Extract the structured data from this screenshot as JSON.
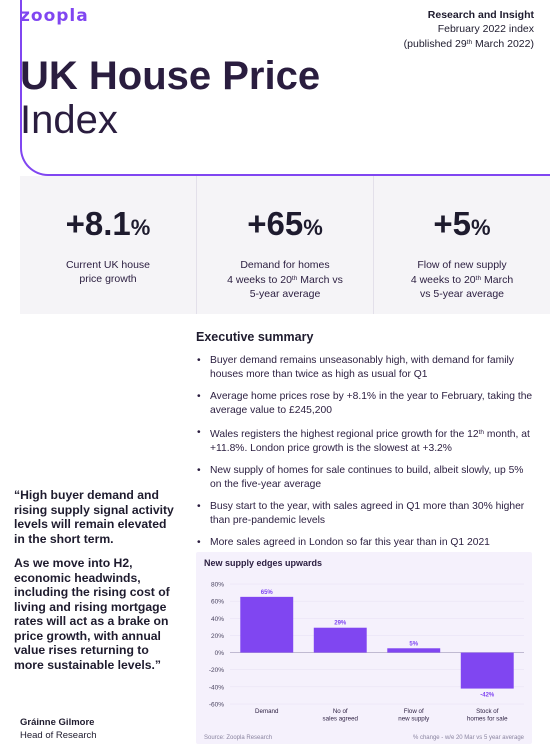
{
  "brand": {
    "logo": "zoopla",
    "accent": "#8046f1"
  },
  "publication": {
    "line1": "Research and Insight",
    "line2": "February 2022 index",
    "line3_pre": "(published 29",
    "line3_sup": "th",
    "line3_post": " March 2022)"
  },
  "hero": {
    "title": "UK House Price",
    "subtitle": "Index"
  },
  "stats": [
    {
      "value": "+8.1",
      "unit": "%",
      "label_l1": "Current UK house",
      "label_l2": "price growth",
      "label_l3": ""
    },
    {
      "value": "+65",
      "unit": "%",
      "label_l1": "Demand for homes",
      "label_l2_pre": "4 weeks to 20",
      "label_l2_sup": "th",
      "label_l2_post": " March vs",
      "label_l3": "5-year average"
    },
    {
      "value": "+5",
      "unit": "%",
      "label_l1": "Flow of new supply",
      "label_l2_pre": "4 weeks to 20",
      "label_l2_sup": "th",
      "label_l2_post": " March",
      "label_l3": "vs 5-year average"
    }
  ],
  "executive_summary": {
    "title": "Executive summary",
    "bullets": [
      "Buyer demand remains unseasonably high, with demand for family houses more than twice as high as usual for Q1",
      "Average home prices rose by +8.1% in the year to February, taking the average value to £245,200",
      "",
      "New supply of homes for sale continues to build, albeit slowly, up 5% on the five-year average",
      "Busy start to the year, with sales agreed in Q1 more than 30% higher than pre-pandemic levels",
      "More sales agreed in London so far this year than in Q1 2021"
    ],
    "wales_pre": "Wales registers the highest regional price growth for the 12",
    "wales_sup": "th",
    "wales_post": " month, at +11.8%. London price growth is the slowest at +3.2%"
  },
  "quote": {
    "p1": "“High buyer demand and rising supply signal activity levels will remain elevated in the short term.",
    "p2": "As we move into H2, economic headwinds, including the rising cost of living and rising mortgage rates will act as a brake on price growth, with annual value rises returning to more sustainable levels.”",
    "author_name": "Gráinne Gilmore",
    "author_role": "Head of Research"
  },
  "chart_data": {
    "type": "bar",
    "title": "New supply edges upwards",
    "categories": [
      "Demand",
      "No of sales agreed",
      "Flow of new supply",
      "Stock of homes for sale"
    ],
    "category_lines": [
      [
        "Demand"
      ],
      [
        "No of",
        "sales agreed"
      ],
      [
        "Flow of",
        "new supply"
      ],
      [
        "Stock of",
        "homes for sale"
      ]
    ],
    "values": [
      65,
      29,
      5,
      -42
    ],
    "data_labels": [
      "65%",
      "29%",
      "5%",
      "-42%"
    ],
    "ylim": [
      -60,
      80
    ],
    "yticks": [
      80,
      60,
      40,
      20,
      0,
      -20,
      -40,
      -60
    ],
    "ytick_labels": [
      "80%",
      "60%",
      "40%",
      "20%",
      "0%",
      "-20%",
      "-40%",
      "-60%"
    ],
    "bar_color": "#8046f1",
    "source": "Source: Zoopla Research",
    "note": "% change - w/e 20 Mar vs 5 year average"
  }
}
